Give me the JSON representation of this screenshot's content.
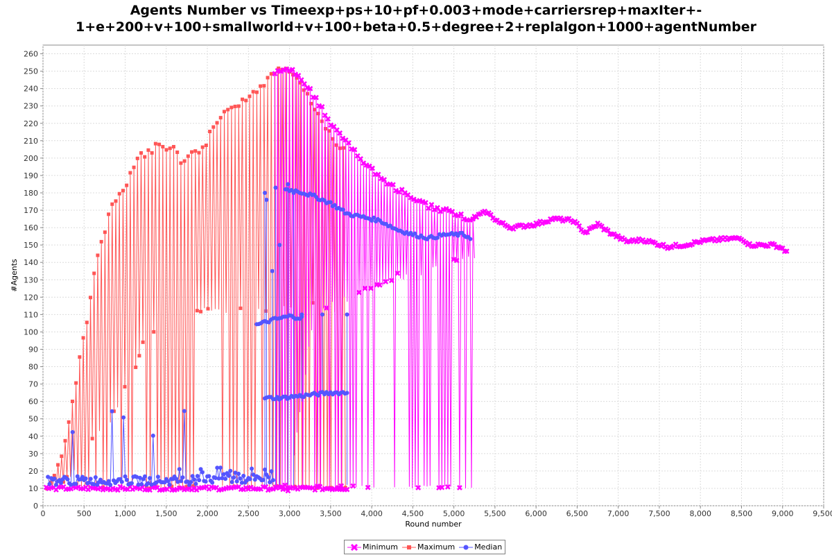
{
  "chart_data": {
    "type": "line",
    "title_line1": "Agents Number vs Timeexp+ps+10+pf+0.003+mode+carriersrep+maxIter+-",
    "title_line2": "1+e+200+v+100+smallworld+v+100+beta+0.5+degree+2+replalgon+1000+agentNumber",
    "xlabel": "Round number",
    "ylabel": "#Agents",
    "xlim": [
      0,
      9500
    ],
    "ylim": [
      0,
      265
    ],
    "x_ticks": [
      0,
      500,
      1000,
      1500,
      2000,
      2500,
      3000,
      3500,
      4000,
      4500,
      5000,
      5500,
      6000,
      6500,
      7000,
      7500,
      8000,
      8500,
      9000,
      9500
    ],
    "x_tick_labels": [
      "0",
      "500",
      "1,000",
      "1,500",
      "2,000",
      "2,500",
      "3,000",
      "3,500",
      "4,000",
      "4,500",
      "5,000",
      "5,500",
      "6,000",
      "6,500",
      "7,000",
      "7,500",
      "8,000",
      "8,500",
      "9,000",
      "9,500"
    ],
    "y_ticks": [
      0,
      10,
      20,
      30,
      40,
      50,
      60,
      70,
      80,
      90,
      100,
      110,
      120,
      130,
      140,
      150,
      160,
      170,
      180,
      190,
      200,
      210,
      220,
      230,
      240,
      250,
      260
    ],
    "grid": true,
    "legend_position": "bottom-center",
    "series": [
      {
        "name": "Minimum",
        "color": "#ff00ff",
        "marker": "x",
        "envelope_top": [
          [
            2820,
            250
          ],
          [
            2950,
            253
          ],
          [
            3100,
            250
          ],
          [
            3300,
            237
          ],
          [
            3500,
            222
          ],
          [
            3600,
            215
          ],
          [
            3700,
            210
          ],
          [
            3900,
            200
          ],
          [
            4100,
            190
          ],
          [
            4300,
            184
          ],
          [
            4500,
            178
          ],
          [
            4700,
            174
          ],
          [
            4900,
            171
          ],
          [
            5100,
            168
          ],
          [
            5250,
            166
          ],
          [
            5400,
            169
          ],
          [
            5550,
            163
          ],
          [
            5700,
            160
          ],
          [
            6000,
            162
          ],
          [
            6200,
            165
          ],
          [
            6450,
            164
          ],
          [
            6600,
            157
          ],
          [
            6750,
            162
          ],
          [
            6900,
            157
          ],
          [
            7100,
            152
          ],
          [
            7300,
            153
          ],
          [
            7600,
            149
          ],
          [
            7800,
            150
          ],
          [
            8000,
            152
          ],
          [
            8200,
            153
          ],
          [
            8500,
            154
          ],
          [
            8600,
            150
          ],
          [
            8900,
            150
          ],
          [
            9000,
            148
          ],
          [
            9050,
            146
          ]
        ],
        "envelope_bottom": [
          [
            2820,
            10
          ],
          [
            3000,
            10
          ],
          [
            3300,
            112
          ],
          [
            3500,
            117
          ],
          [
            3700,
            119
          ],
          [
            3900,
            123
          ],
          [
            4100,
            127
          ],
          [
            4300,
            132
          ],
          [
            4500,
            132
          ],
          [
            4700,
            136
          ],
          [
            4900,
            138
          ],
          [
            5100,
            142
          ],
          [
            5250,
            142
          ]
        ],
        "baseline": 10
      },
      {
        "name": "Maximum",
        "color": "#ff5555",
        "marker": "square",
        "envelope_top": [
          [
            50,
            12
          ],
          [
            150,
            20
          ],
          [
            250,
            32
          ],
          [
            350,
            60
          ],
          [
            450,
            88
          ],
          [
            550,
            113
          ],
          [
            650,
            143
          ],
          [
            750,
            160
          ],
          [
            850,
            178
          ],
          [
            950,
            180
          ],
          [
            1050,
            192
          ],
          [
            1150,
            203
          ],
          [
            1300,
            205
          ],
          [
            1400,
            210
          ],
          [
            1500,
            205
          ],
          [
            1600,
            210
          ],
          [
            1700,
            198
          ],
          [
            1800,
            205
          ],
          [
            1900,
            207
          ],
          [
            2000,
            212
          ],
          [
            2050,
            218
          ],
          [
            2150,
            224
          ],
          [
            2250,
            230
          ],
          [
            2400,
            234
          ],
          [
            2500,
            236
          ],
          [
            2600,
            240
          ],
          [
            2700,
            245
          ],
          [
            2800,
            252
          ],
          [
            2900,
            254
          ],
          [
            3000,
            252
          ],
          [
            3100,
            248
          ],
          [
            3200,
            240
          ],
          [
            3300,
            232
          ],
          [
            3400,
            222
          ],
          [
            3500,
            215
          ],
          [
            3600,
            208
          ],
          [
            3700,
            205
          ]
        ],
        "envelope_bottom": [
          [
            100,
            10
          ],
          [
            300,
            15
          ],
          [
            400,
            23
          ],
          [
            500,
            38
          ],
          [
            600,
            38
          ],
          [
            700,
            43
          ],
          [
            800,
            48
          ],
          [
            900,
            55
          ],
          [
            1000,
            68
          ],
          [
            1100,
            75
          ],
          [
            1200,
            92
          ],
          [
            1300,
            100
          ],
          [
            1400,
            103
          ],
          [
            1500,
            105
          ],
          [
            1600,
            107
          ],
          [
            1700,
            108
          ],
          [
            1800,
            110
          ],
          [
            1900,
            112
          ],
          [
            2000,
            112
          ],
          [
            2200,
            112
          ],
          [
            2400,
            114
          ],
          [
            2600,
            115
          ],
          [
            2800,
            113
          ],
          [
            3000,
            113
          ],
          [
            3200,
            115
          ],
          [
            3400,
            115
          ],
          [
            3700,
            110
          ]
        ],
        "baseline": 10
      },
      {
        "name": "Median",
        "color": "#5555ff",
        "marker": "circle",
        "upper_band": [
          [
            2950,
            182
          ],
          [
            3100,
            181
          ],
          [
            3300,
            178
          ],
          [
            3500,
            174
          ],
          [
            3700,
            168
          ],
          [
            3900,
            166
          ],
          [
            4100,
            164
          ],
          [
            4300,
            159
          ],
          [
            4500,
            156
          ],
          [
            4700,
            154
          ],
          [
            4900,
            156
          ],
          [
            5100,
            156
          ],
          [
            5220,
            154
          ]
        ],
        "lower_band": [
          [
            2600,
            104
          ],
          [
            2800,
            107
          ],
          [
            3000,
            109
          ],
          [
            3150,
            108
          ]
        ],
        "mid_band": [
          [
            2700,
            62
          ],
          [
            2900,
            62
          ],
          [
            3100,
            63
          ],
          [
            3300,
            64
          ],
          [
            3500,
            65
          ],
          [
            3700,
            65
          ]
        ],
        "baseline": 12
      }
    ]
  }
}
